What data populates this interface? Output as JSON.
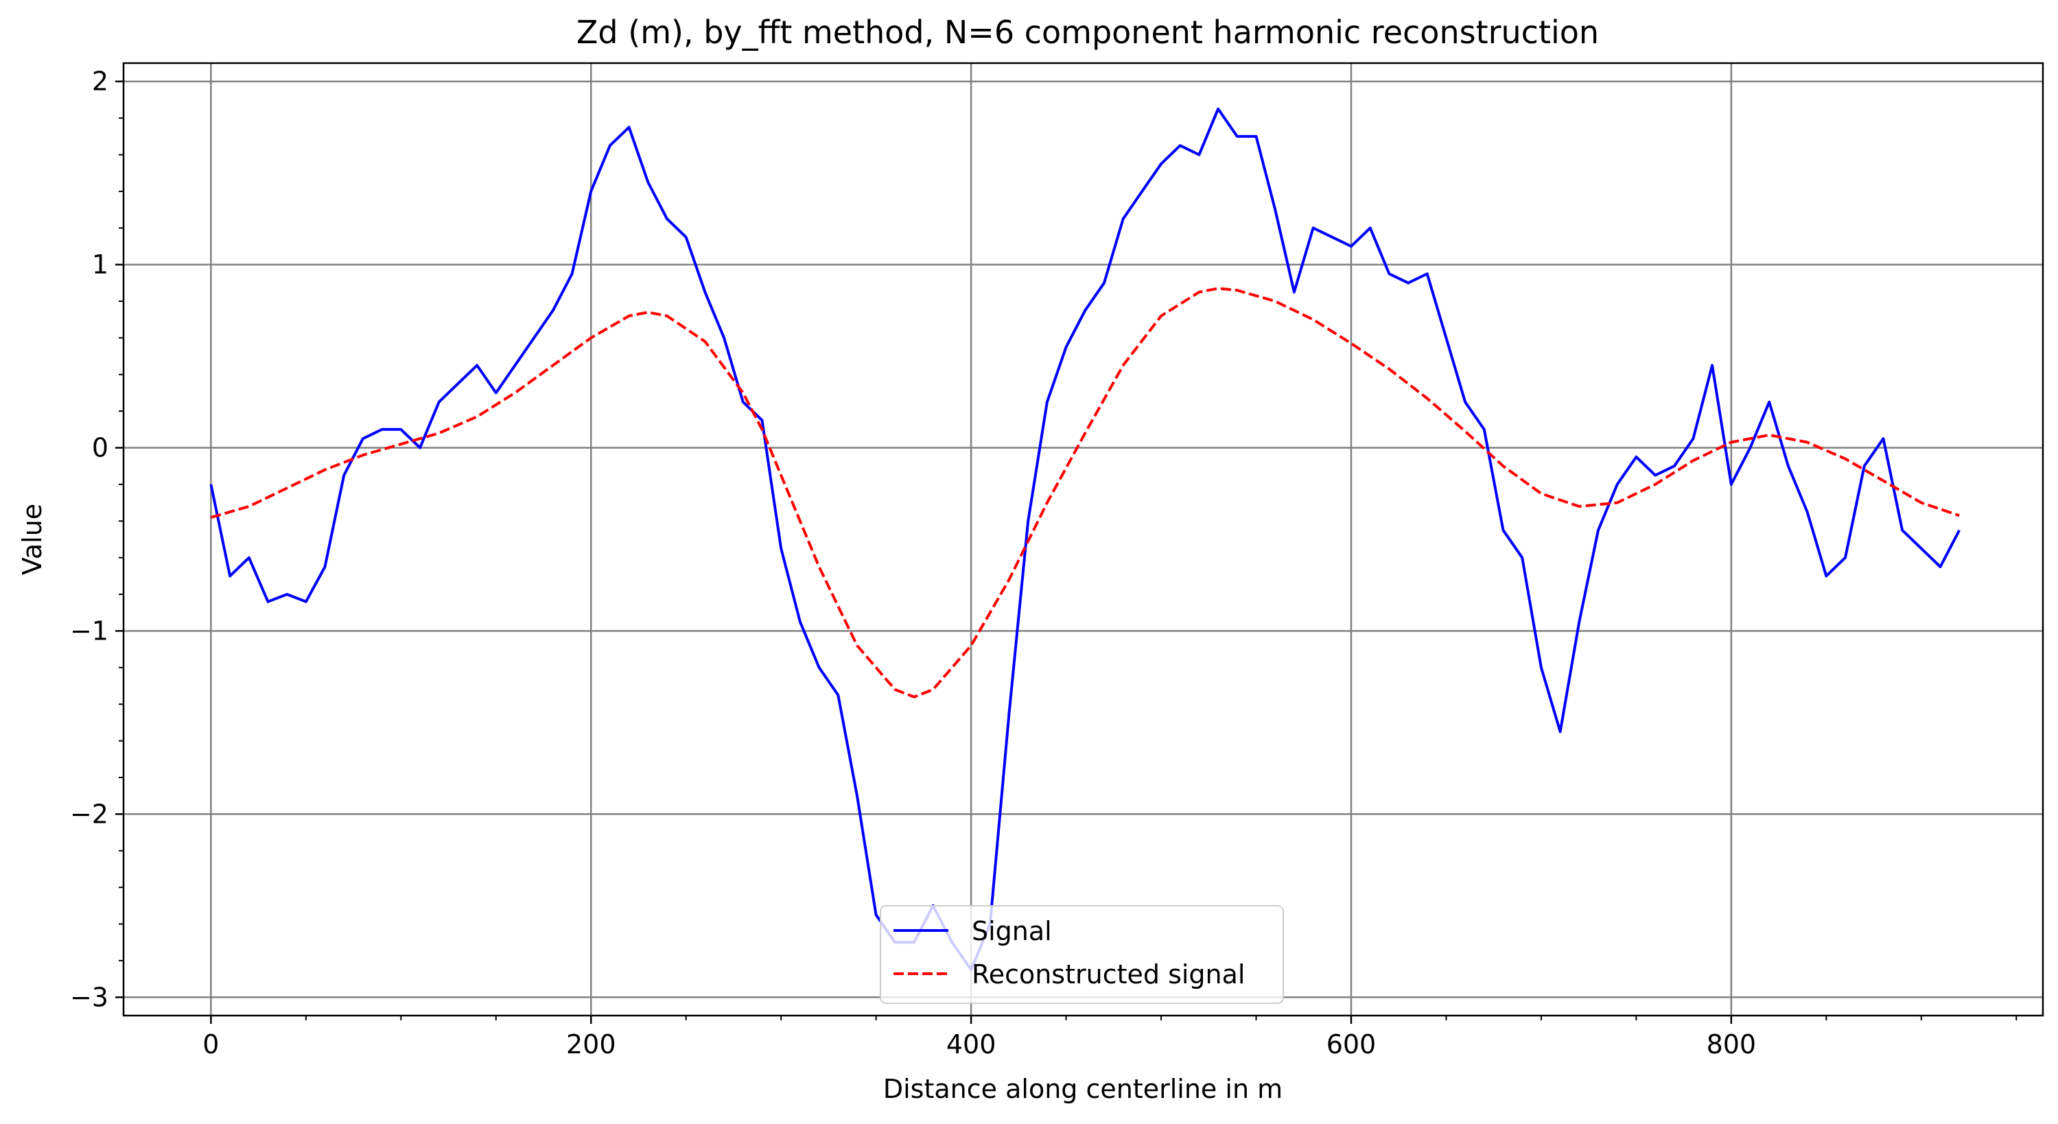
{
  "chart_data": {
    "type": "line",
    "title": "Zd (m), by_fft method, N=6 component harmonic reconstruction",
    "xlabel": "Distance along centerline in m",
    "ylabel": "Value",
    "xlim": [
      -46,
      964
    ],
    "ylim": [
      -3.1,
      2.1
    ],
    "xticks": [
      0,
      200,
      400,
      600,
      800
    ],
    "xtick_labels": [
      "0",
      "200",
      "400",
      "600",
      "800"
    ],
    "yticks": [
      2,
      1,
      0,
      -1,
      -2,
      -3
    ],
    "ytick_labels": [
      "2",
      "1",
      "0",
      "−1",
      "−2",
      "−3"
    ],
    "grid": true,
    "legend_position": "lower-center",
    "series": [
      {
        "name": "Signal",
        "color": "#0000ff",
        "style": "solid",
        "x": [
          0,
          10,
          20,
          30,
          40,
          50,
          60,
          70,
          80,
          90,
          100,
          110,
          120,
          130,
          140,
          150,
          160,
          170,
          180,
          190,
          200,
          210,
          220,
          230,
          240,
          250,
          260,
          270,
          280,
          290,
          300,
          310,
          320,
          330,
          340,
          350,
          360,
          370,
          380,
          390,
          400,
          410,
          420,
          430,
          440,
          450,
          460,
          470,
          480,
          490,
          500,
          510,
          520,
          530,
          540,
          550,
          560,
          570,
          580,
          590,
          600,
          610,
          620,
          630,
          640,
          650,
          660,
          670,
          680,
          690,
          700,
          710,
          720,
          730,
          740,
          750,
          760,
          770,
          780,
          790,
          800,
          810,
          820,
          830,
          840,
          850,
          860,
          870,
          880,
          890,
          900,
          910,
          920
        ],
        "y": [
          -0.2,
          -0.7,
          -0.6,
          -0.84,
          -0.8,
          -0.84,
          -0.65,
          -0.15,
          0.05,
          0.1,
          0.1,
          0.0,
          0.25,
          0.35,
          0.45,
          0.3,
          0.45,
          0.6,
          0.75,
          0.95,
          1.4,
          1.65,
          1.75,
          1.45,
          1.25,
          1.15,
          0.85,
          0.6,
          0.25,
          0.15,
          -0.55,
          -0.95,
          -1.2,
          -1.35,
          -1.9,
          -2.55,
          -2.7,
          -2.7,
          -2.5,
          -2.7,
          -2.85,
          -2.6,
          -1.45,
          -0.4,
          0.25,
          0.55,
          0.75,
          0.9,
          1.25,
          1.4,
          1.55,
          1.65,
          1.6,
          1.85,
          1.7,
          1.7,
          1.3,
          0.85,
          1.2,
          1.15,
          1.1,
          1.2,
          0.95,
          0.9,
          0.95,
          0.6,
          0.25,
          0.1,
          -0.45,
          -0.6,
          -1.2,
          -1.55,
          -0.95,
          -0.45,
          -0.2,
          -0.05,
          -0.15,
          -0.1,
          0.05,
          0.45,
          -0.2,
          0.0,
          0.25,
          -0.1,
          -0.35,
          -0.7,
          -0.6,
          -0.1,
          0.05,
          -0.45,
          -0.55,
          -0.65,
          -0.45
        ]
      },
      {
        "name": "Reconstructed signal",
        "color": "#ff0000",
        "style": "dashed",
        "x": [
          0,
          20,
          40,
          60,
          80,
          100,
          120,
          140,
          160,
          180,
          200,
          220,
          230,
          240,
          260,
          280,
          290,
          300,
          320,
          340,
          360,
          370,
          380,
          400,
          420,
          440,
          460,
          480,
          500,
          520,
          530,
          540,
          560,
          580,
          600,
          620,
          640,
          660,
          680,
          700,
          720,
          740,
          760,
          780,
          800,
          820,
          840,
          860,
          880,
          900,
          920
        ],
        "y": [
          -0.38,
          -0.32,
          -0.22,
          -0.12,
          -0.04,
          0.02,
          0.08,
          0.17,
          0.3,
          0.45,
          0.6,
          0.72,
          0.74,
          0.72,
          0.58,
          0.3,
          0.1,
          -0.15,
          -0.65,
          -1.08,
          -1.32,
          -1.36,
          -1.32,
          -1.08,
          -0.72,
          -0.3,
          0.08,
          0.45,
          0.72,
          0.85,
          0.87,
          0.86,
          0.8,
          0.7,
          0.57,
          0.43,
          0.27,
          0.09,
          -0.1,
          -0.25,
          -0.32,
          -0.3,
          -0.2,
          -0.07,
          0.03,
          0.07,
          0.03,
          -0.06,
          -0.18,
          -0.3,
          -0.37
        ]
      }
    ]
  }
}
